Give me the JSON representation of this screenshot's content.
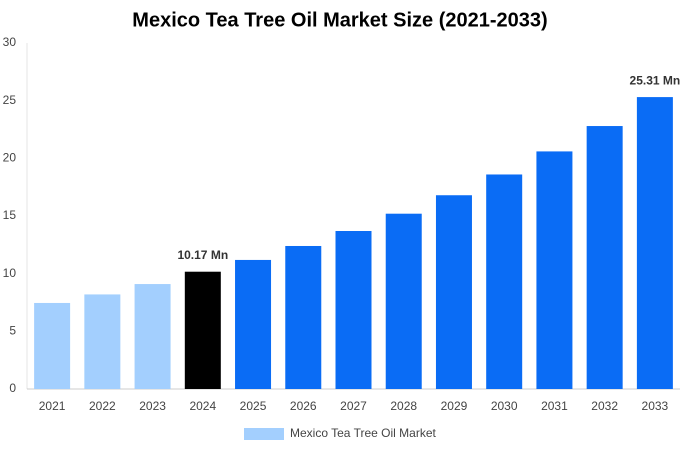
{
  "chart_data": {
    "type": "bar",
    "title": "Mexico Tea Tree Oil Market Size (2021-2033)",
    "categories": [
      "2021",
      "2022",
      "2023",
      "2024",
      "2025",
      "2026",
      "2027",
      "2028",
      "2029",
      "2030",
      "2031",
      "2032",
      "2033"
    ],
    "series": [
      {
        "name": "Mexico Tea Tree Oil Market",
        "color": "#a3cffe",
        "colors": [
          "#a3cffe",
          "#a3cffe",
          "#a3cffe",
          "#000000",
          "#0a6cf5",
          "#0a6cf5",
          "#0a6cf5",
          "#0a6cf5",
          "#0a6cf5",
          "#0a6cf5",
          "#0a6cf5",
          "#0a6cf5",
          "#0a6cf5"
        ],
        "values": [
          7.46,
          8.2,
          9.1,
          10.17,
          11.19,
          12.4,
          13.7,
          15.2,
          16.8,
          18.6,
          20.6,
          22.8,
          25.31
        ],
        "value_labels": [
          null,
          null,
          null,
          "10.17 Mn",
          null,
          null,
          null,
          null,
          null,
          null,
          null,
          null,
          "25.31 Mn"
        ]
      }
    ],
    "ylim": [
      0,
      30
    ],
    "yticks": [
      0,
      5,
      10,
      15,
      20,
      25,
      30
    ],
    "grid": false
  }
}
